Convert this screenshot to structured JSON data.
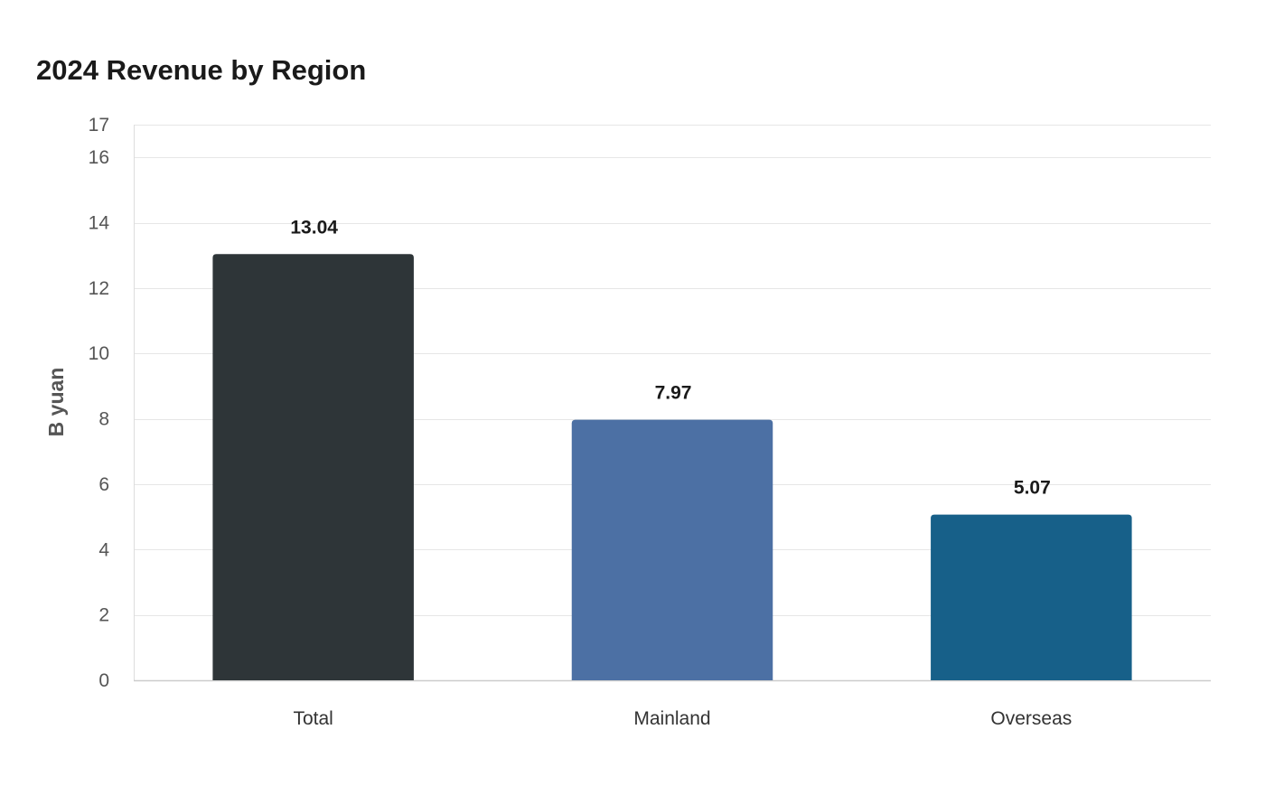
{
  "chart_data": {
    "type": "bar",
    "title": "2024 Revenue by Region",
    "xlabel": "",
    "ylabel": "B yuan",
    "categories": [
      "Total",
      "Mainland",
      "Overseas"
    ],
    "values": [
      13.04,
      7.97,
      5.07
    ],
    "value_labels": [
      "13.04",
      "7.97",
      "5.07"
    ],
    "colors": [
      "#2e3538",
      "#4c70a4",
      "#176089"
    ],
    "ylim": [
      0,
      17
    ],
    "yticks": [
      0,
      2,
      4,
      6,
      8,
      10,
      12,
      14,
      16,
      17
    ],
    "grid": true,
    "legend": "none"
  }
}
